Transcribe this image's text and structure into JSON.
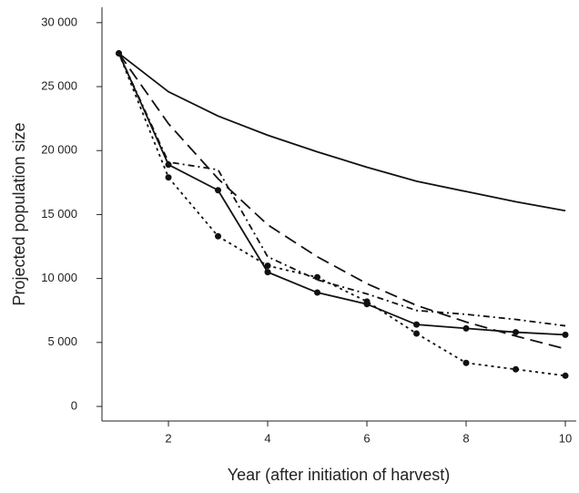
{
  "chart_data": {
    "type": "line",
    "xlabel": "Year (after initiation of harvest)",
    "ylabel": "Projected population size",
    "x": [
      1,
      2,
      3,
      4,
      5,
      6,
      7,
      8,
      9,
      10
    ],
    "series": [
      {
        "color": "#111111",
        "dash": "solid",
        "markers": false,
        "values": [
          27600,
          24600,
          22700,
          21200,
          19900,
          18700,
          17600,
          16800,
          16000,
          15300
        ]
      },
      {
        "color": "#111111",
        "dash": "long",
        "markers": false,
        "values": [
          27600,
          22100,
          17800,
          14200,
          11700,
          9600,
          7900,
          6600,
          5500,
          4500
        ]
      },
      {
        "color": "#111111",
        "dash": "solid",
        "markers": true,
        "values": [
          27600,
          18900,
          16900,
          10500,
          8900,
          8000,
          6400,
          6100,
          5800,
          5600
        ]
      },
      {
        "color": "#111111",
        "dash": "dot",
        "markers": true,
        "values": [
          27600,
          17900,
          13300,
          11000,
          10100,
          8200,
          5700,
          3400,
          2900,
          2400
        ]
      },
      {
        "color": "#111111",
        "dash": "dashdot",
        "markers": false,
        "values": [
          27600,
          19100,
          18500,
          11700,
          9900,
          8800,
          7500,
          7200,
          6800,
          6300
        ]
      }
    ],
    "xlim": [
      0.66,
      10.22
    ],
    "ylim": [
      -1140,
      31200
    ],
    "xticks": [
      2,
      4,
      6,
      8,
      10
    ],
    "yticks": [
      0,
      {
        "value": 5000,
        "label": "5 000"
      },
      {
        "value": 10000,
        "label": "10 000"
      },
      {
        "value": 15000,
        "label": "15 000"
      },
      {
        "value": 20000,
        "label": "20 000"
      },
      {
        "value": 25000,
        "label": "25 000"
      },
      {
        "value": 30000,
        "label": "30 000"
      }
    ]
  }
}
